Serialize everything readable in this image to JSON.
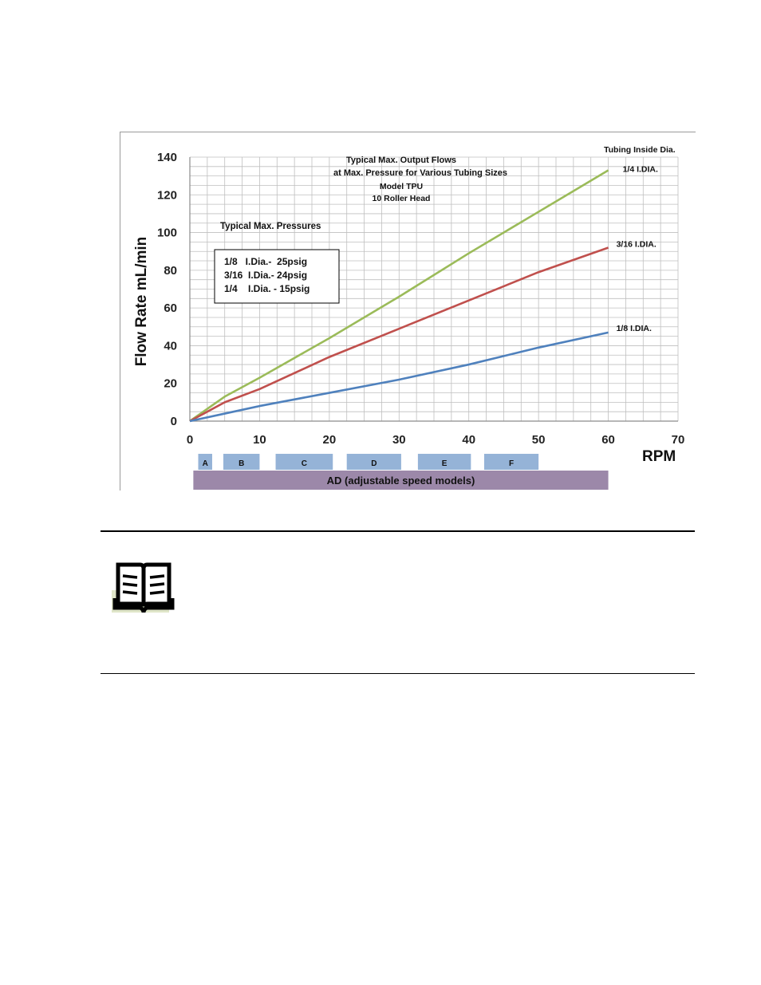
{
  "chart_data": {
    "type": "line",
    "title_lines": [
      "Typical Max. Output Flows",
      "at Max. Pressure for  Various  Tubing Sizes",
      "Model TPU",
      "10 Roller Head"
    ],
    "xlabel": "RPM",
    "ylabel": "Flow Rate mL/min",
    "xlim": [
      0,
      70
    ],
    "ylim": [
      0,
      140
    ],
    "x_ticks": [
      "0",
      "10",
      "20",
      "30",
      "40",
      "50",
      "60",
      "70"
    ],
    "y_ticks": [
      "0",
      "20",
      "40",
      "60",
      "80",
      "100",
      "120",
      "140"
    ],
    "grid": true,
    "legend_title": "Tubing Inside Dia.",
    "series": [
      {
        "name": "1/4 I.DIA.",
        "color": "#9bbb59",
        "x": [
          0,
          5,
          10,
          20,
          30,
          40,
          50,
          60
        ],
        "y": [
          0,
          13,
          23,
          44,
          66,
          89,
          111,
          133
        ]
      },
      {
        "name": "3/16 I.DIA.",
        "color": "#c0504d",
        "x": [
          0,
          5,
          10,
          20,
          30,
          40,
          50,
          60
        ],
        "y": [
          0,
          10,
          17,
          34,
          49,
          64,
          79,
          92
        ]
      },
      {
        "name": "1/8 I.DIA.",
        "color": "#4f81bd",
        "x": [
          0,
          5,
          10,
          20,
          30,
          40,
          50,
          60
        ],
        "y": [
          0,
          4,
          8,
          15,
          22,
          30,
          39,
          47
        ]
      }
    ],
    "pressure_box": {
      "heading": "Typical Max. Pressures",
      "lines": [
        "1/8   I.Dia.-  25psig",
        "3/16  I.Dia.- 24psig",
        "1/4    I.Dia. - 15psig"
      ]
    },
    "speed_ranges": [
      {
        "label": "A",
        "from": 1.2,
        "to": 3.2
      },
      {
        "label": "B",
        "from": 4.8,
        "to": 10
      },
      {
        "label": "C",
        "from": 12.3,
        "to": 20.5
      },
      {
        "label": "D",
        "from": 22.5,
        "to": 30.3
      },
      {
        "label": "E",
        "from": 32.7,
        "to": 40.3
      },
      {
        "label": "F",
        "from": 42.2,
        "to": 50
      }
    ],
    "speed_bar": {
      "label": "AD (adjustable speed models)",
      "from": 0.5,
      "to": 60
    }
  },
  "colors": {
    "range_fill": "#95b3d7",
    "bar_fill": "#9c88a9",
    "grid": "#bfbfbf"
  },
  "icons": {
    "note": "open-book-icon"
  }
}
